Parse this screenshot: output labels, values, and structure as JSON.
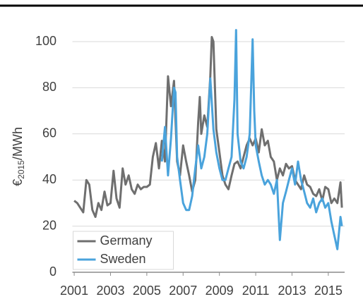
{
  "chart_data": {
    "type": "line",
    "ylabel": {
      "unit": "€",
      "sub": "2015",
      "rest": "/MWh"
    },
    "xlim": [
      2000.9,
      2015.9
    ],
    "xticks": [
      2001,
      2003,
      2005,
      2007,
      2009,
      2011,
      2013,
      2015
    ],
    "ylim": [
      0,
      100
    ],
    "yticks": [
      0,
      20,
      40,
      60,
      80,
      100
    ],
    "grid": true,
    "legend": "lower left",
    "series": [
      {
        "name": "Germany",
        "color": "#6f6f6f",
        "x": [
          2001.0,
          2001.17,
          2001.33,
          2001.5,
          2001.67,
          2001.83,
          2002.0,
          2002.17,
          2002.33,
          2002.5,
          2002.67,
          2002.83,
          2003.0,
          2003.17,
          2003.33,
          2003.5,
          2003.67,
          2003.83,
          2004.0,
          2004.17,
          2004.33,
          2004.5,
          2004.67,
          2004.83,
          2005.0,
          2005.17,
          2005.33,
          2005.5,
          2005.67,
          2005.83,
          2006.0,
          2006.17,
          2006.33,
          2006.5,
          2006.67,
          2006.83,
          2007.0,
          2007.17,
          2007.33,
          2007.5,
          2007.67,
          2007.83,
          2007.92,
          2008.0,
          2008.17,
          2008.33,
          2008.5,
          2008.58,
          2008.67,
          2008.83,
          2009.0,
          2009.17,
          2009.33,
          2009.5,
          2009.67,
          2009.83,
          2010.0,
          2010.17,
          2010.33,
          2010.5,
          2010.67,
          2010.83,
          2011.0,
          2011.17,
          2011.33,
          2011.5,
          2011.67,
          2011.83,
          2012.0,
          2012.17,
          2012.33,
          2012.5,
          2012.67,
          2012.83,
          2013.0,
          2013.17,
          2013.33,
          2013.5,
          2013.67,
          2013.83,
          2014.0,
          2014.17,
          2014.33,
          2014.5,
          2014.67,
          2014.83,
          2015.0,
          2015.17,
          2015.33,
          2015.5,
          2015.67,
          2015.75
        ],
        "values": [
          31,
          30,
          28,
          26,
          40,
          38,
          27,
          24,
          30,
          27,
          35,
          29,
          30,
          44,
          32,
          28,
          45,
          38,
          42,
          36,
          34,
          38,
          36,
          37,
          37,
          38,
          50,
          56,
          45,
          57,
          48,
          85,
          72,
          83,
          48,
          42,
          55,
          48,
          42,
          35,
          40,
          65,
          76,
          60,
          68,
          63,
          85,
          102,
          100,
          62,
          52,
          42,
          38,
          36,
          42,
          47,
          48,
          45,
          50,
          55,
          58,
          55,
          58,
          52,
          62,
          55,
          57,
          50,
          48,
          40,
          45,
          42,
          47,
          45,
          46,
          40,
          38,
          36,
          42,
          38,
          37,
          34,
          33,
          36,
          31,
          37,
          36,
          30,
          32,
          30,
          39,
          28
        ]
      },
      {
        "name": "Sweden",
        "color": "#4aa3dc",
        "x": [
          2005.83,
          2006.0,
          2006.17,
          2006.33,
          2006.5,
          2006.58,
          2006.67,
          2006.83,
          2007.0,
          2007.17,
          2007.33,
          2007.5,
          2007.67,
          2007.83,
          2007.92,
          2008.0,
          2008.17,
          2008.33,
          2008.5,
          2008.67,
          2008.83,
          2009.0,
          2009.17,
          2009.33,
          2009.5,
          2009.67,
          2009.83,
          2009.92,
          2010.0,
          2010.17,
          2010.33,
          2010.5,
          2010.67,
          2010.83,
          2010.92,
          2011.0,
          2011.17,
          2011.33,
          2011.5,
          2011.67,
          2011.83,
          2012.0,
          2012.17,
          2012.33,
          2012.5,
          2012.67,
          2012.83,
          2013.0,
          2013.17,
          2013.33,
          2013.5,
          2013.67,
          2013.83,
          2014.0,
          2014.17,
          2014.33,
          2014.5,
          2014.67,
          2014.83,
          2015.0,
          2015.17,
          2015.33,
          2015.5,
          2015.67,
          2015.75
        ],
        "values": [
          48,
          63,
          42,
          58,
          80,
          78,
          50,
          40,
          30,
          27,
          27,
          33,
          45,
          55,
          50,
          45,
          50,
          60,
          84,
          62,
          52,
          45,
          40,
          40,
          45,
          50,
          75,
          105,
          60,
          48,
          45,
          50,
          60,
          101,
          70,
          55,
          48,
          42,
          38,
          40,
          38,
          34,
          40,
          14,
          30,
          35,
          40,
          45,
          38,
          48,
          40,
          35,
          30,
          28,
          32,
          26,
          30,
          32,
          28,
          30,
          22,
          16,
          10,
          24,
          20
        ]
      }
    ]
  }
}
